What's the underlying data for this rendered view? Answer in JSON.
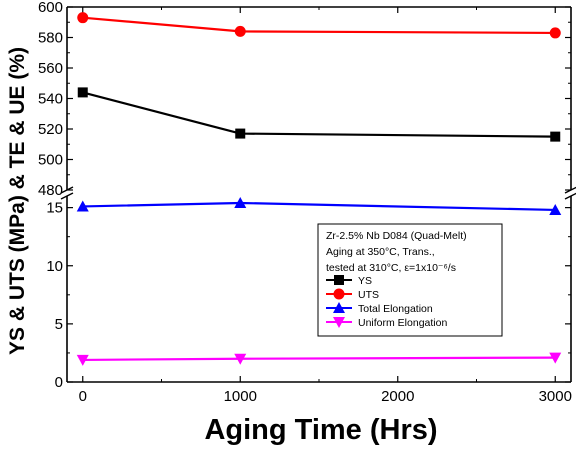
{
  "chart_data": {
    "type": "line",
    "xlabel": "Aging Time (Hrs)",
    "ylabel": "YS & UTS (MPa) & TE & UE (%)",
    "x_ticks": [
      "0",
      "1000",
      "2000",
      "3000"
    ],
    "xlim": [
      -100,
      3100
    ],
    "y_ticks_upper": [
      "480",
      "500",
      "520",
      "540",
      "560",
      "580",
      "600"
    ],
    "ylim_upper": [
      480,
      600
    ],
    "y_ticks_lower": [
      "0",
      "5",
      "10",
      "15"
    ],
    "ylim_lower": [
      0,
      16
    ],
    "axis_break": true,
    "note_lines": [
      "Zr-2.5% Nb D084 (Quad-Melt)",
      "Aging at 350°C, Trans.,",
      "tested at 310°C, ε=1x10⁻⁶/s"
    ],
    "legend_position": "lower-right inside",
    "series": [
      {
        "name": "YS",
        "color": "#000000",
        "marker": "square",
        "panel": "upper",
        "x": [
          0,
          1000,
          3000
        ],
        "values": [
          544,
          517,
          515
        ]
      },
      {
        "name": "UTS",
        "color": "#ff0000",
        "marker": "circle",
        "panel": "upper",
        "x": [
          0,
          1000,
          3000
        ],
        "values": [
          593,
          584,
          583
        ]
      },
      {
        "name": "Total Elongation",
        "color": "#0000ff",
        "marker": "triangle-up",
        "panel": "lower",
        "x": [
          0,
          1000,
          3000
        ],
        "values": [
          15.1,
          15.4,
          14.8
        ]
      },
      {
        "name": "Uniform Elongation",
        "color": "#ff00ff",
        "marker": "triangle-down",
        "panel": "lower",
        "x": [
          0,
          1000,
          3000
        ],
        "values": [
          1.9,
          2.0,
          2.1
        ]
      }
    ]
  }
}
